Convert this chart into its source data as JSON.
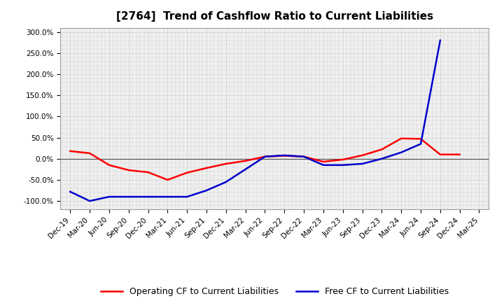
{
  "title": "[2764]  Trend of Cashflow Ratio to Current Liabilities",
  "x_labels": [
    "Dec-19",
    "Mar-20",
    "Jun-20",
    "Sep-20",
    "Dec-20",
    "Mar-21",
    "Jun-21",
    "Sep-21",
    "Dec-21",
    "Mar-22",
    "Jun-22",
    "Sep-22",
    "Dec-22",
    "Mar-23",
    "Jun-23",
    "Sep-23",
    "Dec-23",
    "Mar-24",
    "Jun-24",
    "Sep-24",
    "Dec-24",
    "Mar-25"
  ],
  "operating_cf": [
    18,
    13,
    -15,
    -27,
    -32,
    -50,
    -33,
    -22,
    -12,
    -5,
    5,
    7,
    5,
    -7,
    -2,
    8,
    22,
    48,
    47,
    10,
    10,
    null
  ],
  "free_cf": [
    -78,
    -100,
    -90,
    -90,
    -90,
    -90,
    -90,
    -75,
    -55,
    -25,
    5,
    8,
    5,
    -15,
    -15,
    -12,
    0,
    15,
    35,
    280,
    null,
    null
  ],
  "ylim": [
    -120,
    310
  ],
  "yticks": [
    -100,
    -50,
    0,
    50,
    100,
    150,
    200,
    250,
    300
  ],
  "operating_color": "#ff0000",
  "free_color": "#0000cd",
  "background_color": "#ffffff",
  "plot_bg_color": "#f0f0f0",
  "grid_color": "#999999",
  "zero_line_color": "#555555",
  "legend_operating": "Operating CF to Current Liabilities",
  "legend_free": "Free CF to Current Liabilities",
  "title_fontsize": 11,
  "tick_fontsize": 7.5,
  "legend_fontsize": 9,
  "linewidth": 1.8
}
